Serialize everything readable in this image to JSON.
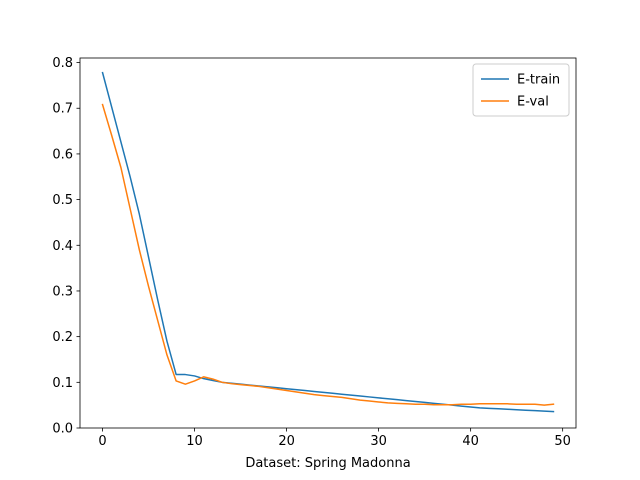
{
  "chart_data": {
    "type": "line",
    "title": "",
    "xlabel": "Dataset: Spring Madonna",
    "ylabel": "",
    "xlim": [
      -2.45,
      51.45
    ],
    "ylim": [
      0,
      0.81
    ],
    "xticks": [
      0,
      10,
      20,
      30,
      40,
      50
    ],
    "yticks": [
      0.0,
      0.1,
      0.2,
      0.3,
      0.4,
      0.5,
      0.6,
      0.7,
      0.8
    ],
    "grid": false,
    "legend_position": "top-right",
    "series": [
      {
        "name": "E-train",
        "color": "#1f77b4",
        "x": [
          0,
          1,
          2,
          3,
          4,
          5,
          6,
          7,
          8,
          9,
          10,
          11,
          12,
          13,
          14,
          15,
          16,
          17,
          18,
          19,
          20,
          21,
          22,
          23,
          24,
          25,
          26,
          27,
          28,
          29,
          30,
          31,
          32,
          33,
          34,
          35,
          36,
          37,
          38,
          39,
          40,
          41,
          42,
          43,
          44,
          45,
          46,
          47,
          48,
          49
        ],
        "y": [
          0.778,
          0.702,
          0.626,
          0.55,
          0.468,
          0.374,
          0.28,
          0.19,
          0.117,
          0.117,
          0.114,
          0.108,
          0.104,
          0.1,
          0.098,
          0.096,
          0.094,
          0.092,
          0.09,
          0.088,
          0.086,
          0.084,
          0.082,
          0.08,
          0.078,
          0.076,
          0.074,
          0.072,
          0.07,
          0.068,
          0.066,
          0.064,
          0.062,
          0.06,
          0.058,
          0.056,
          0.054,
          0.052,
          0.05,
          0.048,
          0.046,
          0.044,
          0.043,
          0.042,
          0.041,
          0.04,
          0.039,
          0.038,
          0.037,
          0.036
        ]
      },
      {
        "name": "E-val",
        "color": "#ff7f0e",
        "x": [
          0,
          1,
          2,
          3,
          4,
          5,
          6,
          7,
          8,
          9,
          10,
          11,
          12,
          13,
          14,
          15,
          16,
          17,
          18,
          19,
          20,
          21,
          22,
          23,
          24,
          25,
          26,
          27,
          28,
          29,
          30,
          31,
          32,
          33,
          34,
          35,
          36,
          37,
          38,
          39,
          40,
          41,
          42,
          43,
          44,
          45,
          46,
          47,
          48,
          49
        ],
        "y": [
          0.708,
          0.64,
          0.57,
          0.48,
          0.39,
          0.31,
          0.235,
          0.16,
          0.103,
          0.096,
          0.103,
          0.112,
          0.107,
          0.1,
          0.097,
          0.095,
          0.093,
          0.091,
          0.088,
          0.085,
          0.082,
          0.079,
          0.076,
          0.073,
          0.071,
          0.069,
          0.067,
          0.064,
          0.061,
          0.059,
          0.057,
          0.055,
          0.054,
          0.053,
          0.052,
          0.052,
          0.051,
          0.051,
          0.051,
          0.052,
          0.052,
          0.053,
          0.053,
          0.053,
          0.053,
          0.052,
          0.052,
          0.052,
          0.05,
          0.052
        ]
      }
    ]
  }
}
